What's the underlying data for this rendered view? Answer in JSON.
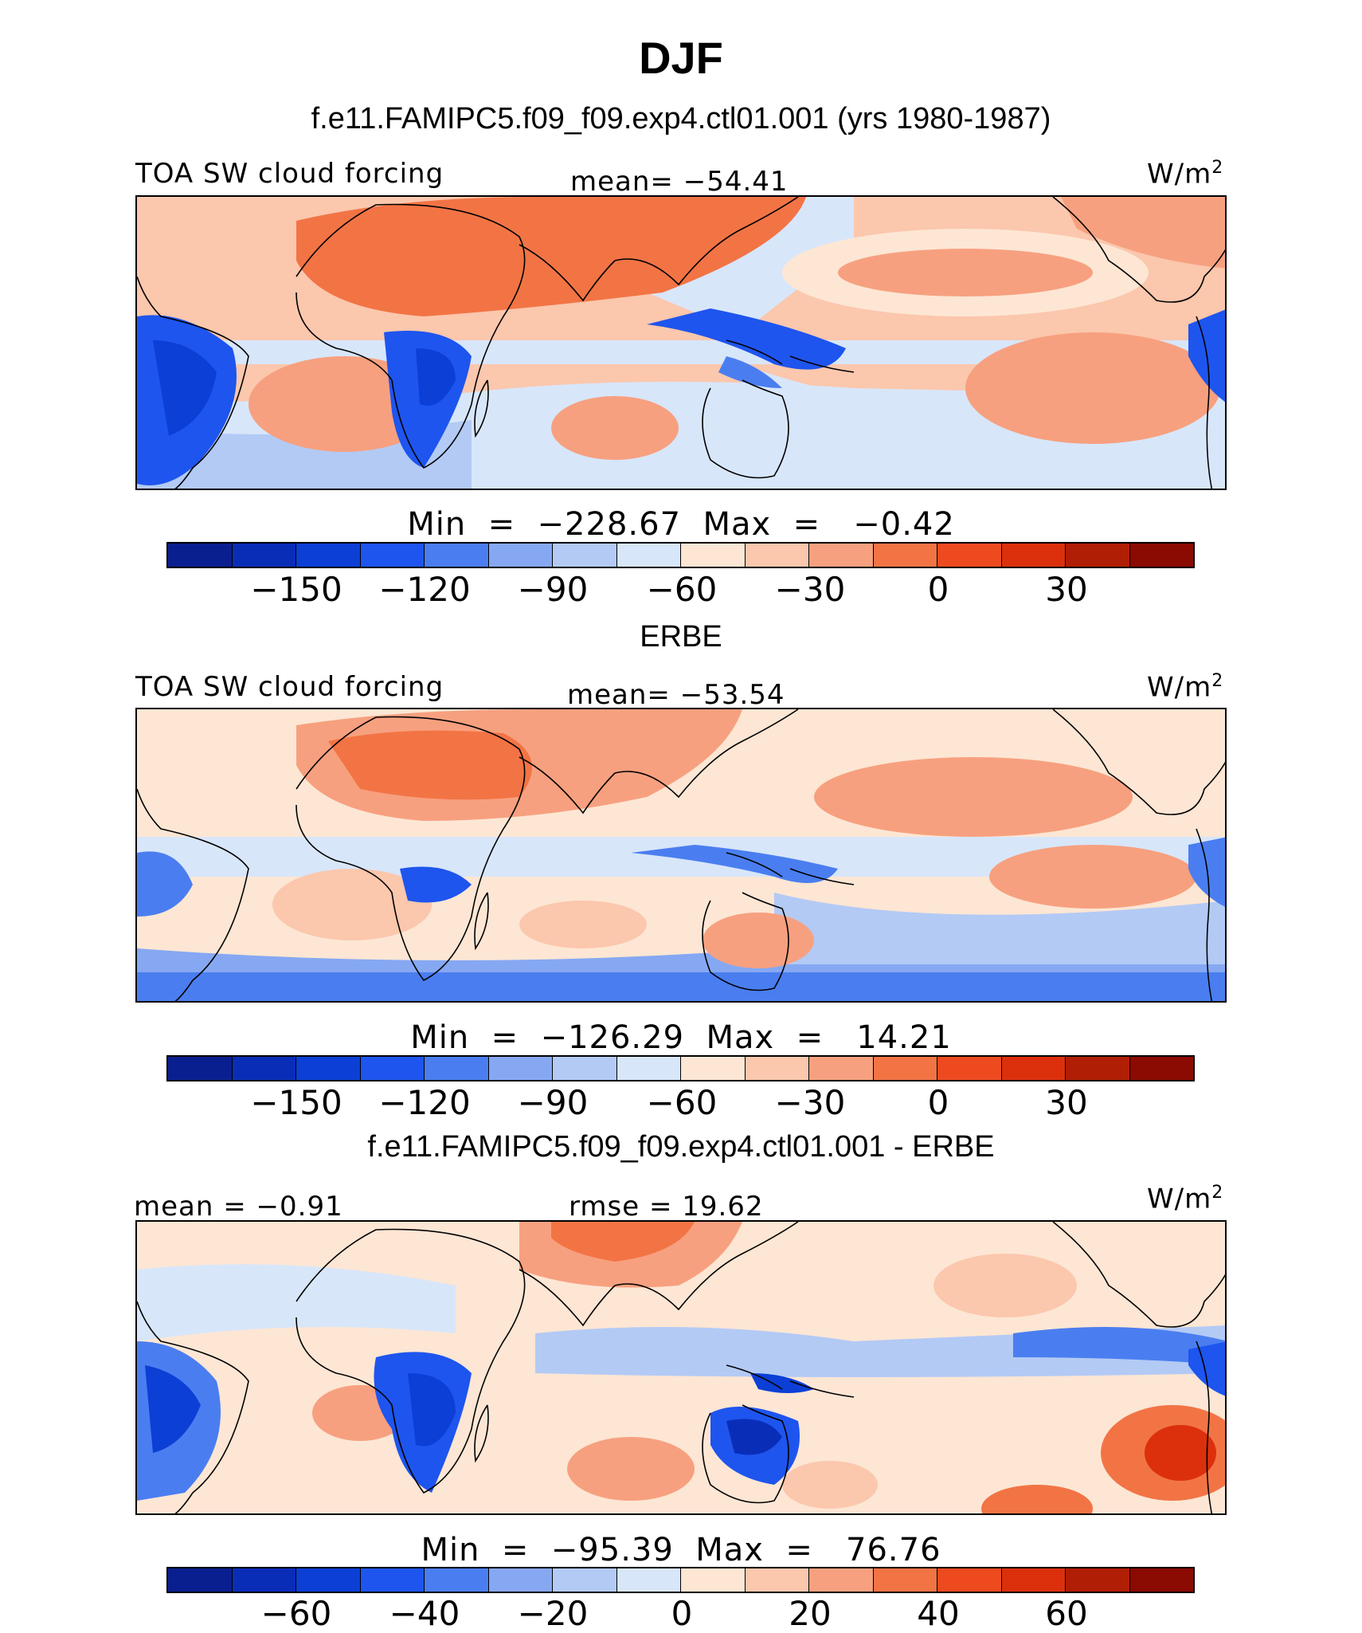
{
  "title": "DJF",
  "subtitle": "f.e11.FAMIPC5.f09_f09.exp4.ctl01.001 (yrs 1980-1987)",
  "panels": [
    {
      "heading": "",
      "left_label": "TOA SW cloud forcing",
      "center_label": "mean= −54.41",
      "units": "W/m",
      "units_sup": "2",
      "minmax": "Min  =  −228.67  Max  =   −0.42",
      "ticks": [
        "−150",
        "−120",
        "−90",
        "−60",
        "−30",
        "0",
        "30"
      ]
    },
    {
      "heading": "ERBE",
      "left_label": "TOA SW cloud forcing",
      "center_label": "mean= −53.54",
      "units": "W/m",
      "units_sup": "2",
      "minmax": "Min  =  −126.29  Max  =   14.21",
      "ticks": [
        "−150",
        "−120",
        "−90",
        "−60",
        "−30",
        "0",
        "30"
      ]
    },
    {
      "heading": "f.e11.FAMIPC5.f09_f09.exp4.ctl01.001 - ERBE",
      "left_label": "mean  =   −0.91",
      "center_label": "rmse  =   19.62",
      "units": "W/m",
      "units_sup": "2",
      "minmax": "Min  =  −95.39  Max  =   76.76",
      "ticks": [
        "−60",
        "−40",
        "−20",
        "0",
        "20",
        "40",
        "60"
      ]
    }
  ],
  "colorbar_colors": [
    "#0a1f8f",
    "#0a2db8",
    "#0b3fd6",
    "#1e55ee",
    "#4a7ef0",
    "#86a8f2",
    "#b3caf5",
    "#d8e6fa",
    "#fde6d4",
    "#fbc7ad",
    "#f7a07f",
    "#f27445",
    "#ee4a1f",
    "#dc300c",
    "#b01e05",
    "#8b0a02"
  ]
}
